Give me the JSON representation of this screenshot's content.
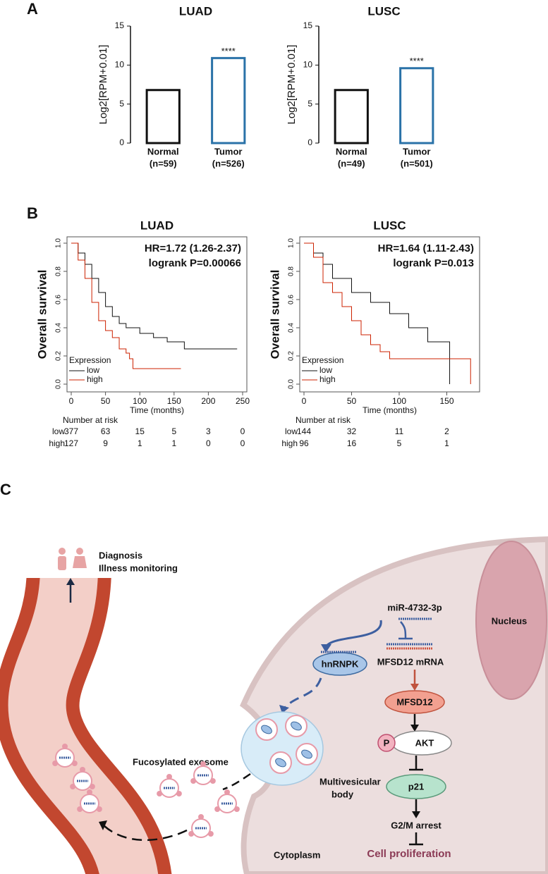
{
  "panel_labels": [
    "A",
    "B",
    "C"
  ],
  "chart_data": [
    {
      "type": "bar",
      "title": "LUAD",
      "y_label": "Log2[RPM+0.01]",
      "categories": [
        "Normal",
        "Tumor"
      ],
      "category_notes": [
        "(n=59)",
        "(n=526)"
      ],
      "values": [
        6.8,
        10.9
      ],
      "colors": [
        "#111111",
        "#2a72a8"
      ],
      "bar_labels": [
        null,
        "****"
      ],
      "ylim": [
        0,
        15
      ],
      "yticks": [
        0,
        5,
        10,
        15
      ]
    },
    {
      "type": "bar",
      "title": "LUSC",
      "y_label": "Log2[RPM+0.01]",
      "categories": [
        "Normal",
        "Tumor"
      ],
      "category_notes": [
        "(n=49)",
        "(n=501)"
      ],
      "values": [
        6.8,
        9.6
      ],
      "colors": [
        "#111111",
        "#2a72a8"
      ],
      "bar_labels": [
        null,
        "****"
      ],
      "ylim": [
        0,
        15
      ],
      "yticks": [
        0,
        5,
        10,
        15
      ]
    },
    {
      "type": "survival",
      "title": "LUAD",
      "x_label": "Time (months)",
      "y_label": "Overall survival",
      "annotations": [
        "HR=1.72 (1.26-2.37)",
        "logrank P=0.00066"
      ],
      "legend_title": "Expression",
      "risk_title": "Number at risk",
      "xlim": [
        0,
        250
      ],
      "xticks": [
        0,
        50,
        100,
        150,
        200,
        250
      ],
      "ylim": [
        0,
        1
      ],
      "yticks": [
        {
          "value": 0,
          "label": "0.0"
        },
        0.2,
        0.4,
        0.6,
        0.8,
        {
          "value": 1,
          "label": "1.0"
        }
      ],
      "series": [
        {
          "name": "low",
          "color": "#111111",
          "x": [
            0,
            10,
            20,
            30,
            40,
            50,
            60,
            70,
            80,
            100,
            120,
            140,
            165,
            242
          ],
          "values": [
            1,
            0.93,
            0.85,
            0.75,
            0.65,
            0.55,
            0.48,
            0.43,
            0.4,
            0.36,
            0.33,
            0.3,
            0.25,
            0.25
          ],
          "at_risk": [
            377,
            63,
            15,
            5,
            3,
            0
          ]
        },
        {
          "name": "high",
          "color": "#cc2200",
          "x": [
            0,
            10,
            20,
            30,
            40,
            50,
            60,
            70,
            80,
            85,
            90,
            160
          ],
          "values": [
            1,
            0.88,
            0.75,
            0.58,
            0.45,
            0.38,
            0.33,
            0.25,
            0.22,
            0.18,
            0.11,
            0.11
          ],
          "at_risk": [
            127,
            9,
            1,
            1,
            0,
            0
          ]
        }
      ]
    },
    {
      "type": "survival",
      "title": "LUSC",
      "x_label": "Time (months)",
      "y_label": "Overall survival",
      "annotations": [
        "HR=1.64 (1.11-2.43)",
        "logrank P=0.013"
      ],
      "legend_title": "Expression",
      "risk_title": "Number at risk",
      "xlim": [
        0,
        180
      ],
      "xticks": [
        0,
        50,
        100,
        150
      ],
      "ylim": [
        0,
        1
      ],
      "yticks": [
        {
          "value": 0,
          "label": "0.0"
        },
        0.2,
        0.4,
        0.6,
        0.8,
        {
          "value": 1,
          "label": "1.0"
        }
      ],
      "series": [
        {
          "name": "low",
          "color": "#111111",
          "x": [
            0,
            10,
            20,
            30,
            50,
            70,
            90,
            110,
            130,
            153,
            153
          ],
          "values": [
            1,
            0.93,
            0.85,
            0.75,
            0.65,
            0.58,
            0.5,
            0.4,
            0.3,
            0.25,
            0
          ],
          "at_risk": [
            144,
            32,
            11,
            2
          ]
        },
        {
          "name": "high",
          "color": "#cc2200",
          "x": [
            0,
            10,
            20,
            30,
            40,
            50,
            60,
            70,
            80,
            90,
            175,
            175
          ],
          "values": [
            1,
            0.9,
            0.72,
            0.65,
            0.55,
            0.45,
            0.35,
            0.28,
            0.23,
            0.18,
            0.18,
            0
          ],
          "at_risk": [
            96,
            16,
            5,
            1
          ]
        }
      ]
    }
  ],
  "diagram": {
    "diagnosis": "Diagnosis",
    "monitoring": "Illness monitoring",
    "mirna": "miR-4732-3p",
    "hnrnpk": "hnRNPK",
    "mrna": "MFSD12 mRNA",
    "mfsd12": "MFSD12",
    "phospho": "P",
    "akt": "AKT",
    "p21": "p21",
    "arrest": "G2/M arrest",
    "proliferation": "Cell proliferation",
    "nucleus": "Nucleus",
    "mvb": [
      "Multivesicular",
      "body"
    ],
    "exosome": "Fucosylated exosome",
    "cytoplasm": "Cytoplasm"
  }
}
